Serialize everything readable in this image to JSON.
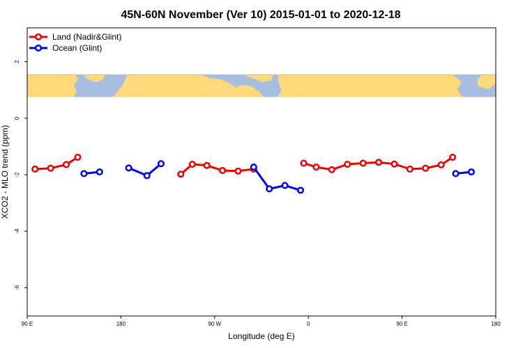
{
  "chart_data": {
    "type": "line",
    "title": "45N-60N November (Ver 10)   2015-01-01 to 2020-12-18",
    "xlabel": "Longitude (deg E)",
    "ylabel": "XCO2 - MLO trend (ppm)",
    "xlim": [
      90,
      540
    ],
    "ylim": [
      -7,
      3.2
    ],
    "x_ticks": [
      {
        "value": 90,
        "label": "90 E"
      },
      {
        "value": 180,
        "label": "180"
      },
      {
        "value": 270,
        "label": "90 W"
      },
      {
        "value": 360,
        "label": "0"
      },
      {
        "value": 450,
        "label": "90 E"
      },
      {
        "value": 540,
        "label": "180"
      }
    ],
    "y_ticks": [
      {
        "value": 2,
        "label": "2"
      },
      {
        "value": 0,
        "label": "0"
      },
      {
        "value": -2,
        "label": "-2"
      },
      {
        "value": -4,
        "label": "-4"
      },
      {
        "value": -6,
        "label": "-6"
      }
    ],
    "map_band": {
      "y_range": [
        0.75,
        1.55
      ],
      "land_color": "#FFD97A",
      "ocean_color": "#A8BEE0"
    },
    "legend_position": "top-left",
    "series": [
      {
        "name": "Land (Nadir&Glint)",
        "color": "#EE0000",
        "segments": [
          [
            [
              97.5,
              -1.8
            ],
            [
              112.5,
              -1.77
            ],
            [
              127.5,
              -1.64
            ],
            [
              138.5,
              -1.38
            ]
          ],
          [
            [
              237.5,
              -1.98
            ],
            [
              248.5,
              -1.63
            ],
            [
              262.5,
              -1.67
            ],
            [
              277.5,
              -1.85
            ],
            [
              292.5,
              -1.87
            ],
            [
              307.5,
              -1.8
            ]
          ],
          [
            [
              355.5,
              -1.59
            ],
            [
              367.5,
              -1.73
            ],
            [
              382.5,
              -1.82
            ],
            [
              397.5,
              -1.63
            ],
            [
              412.5,
              -1.59
            ],
            [
              427.5,
              -1.56
            ],
            [
              442.5,
              -1.62
            ],
            [
              457.5,
              -1.8
            ],
            [
              472.5,
              -1.77
            ],
            [
              487.5,
              -1.65
            ],
            [
              498.5,
              -1.38
            ]
          ]
        ]
      },
      {
        "name": "Ocean (Glint)",
        "color": "#0000EE",
        "segments": [
          [
            [
              144.5,
              -1.96
            ],
            [
              159.5,
              -1.9
            ]
          ],
          [
            [
              187.5,
              -1.76
            ],
            [
              205,
              -2.03
            ],
            [
              218.5,
              -1.61
            ]
          ],
          [
            [
              307.5,
              -1.73
            ],
            [
              322.5,
              -2.5
            ],
            [
              337.5,
              -2.38
            ],
            [
              352.5,
              -2.55
            ]
          ],
          [
            [
              501.5,
              -1.96
            ],
            [
              516.5,
              -1.9
            ]
          ]
        ]
      }
    ]
  }
}
